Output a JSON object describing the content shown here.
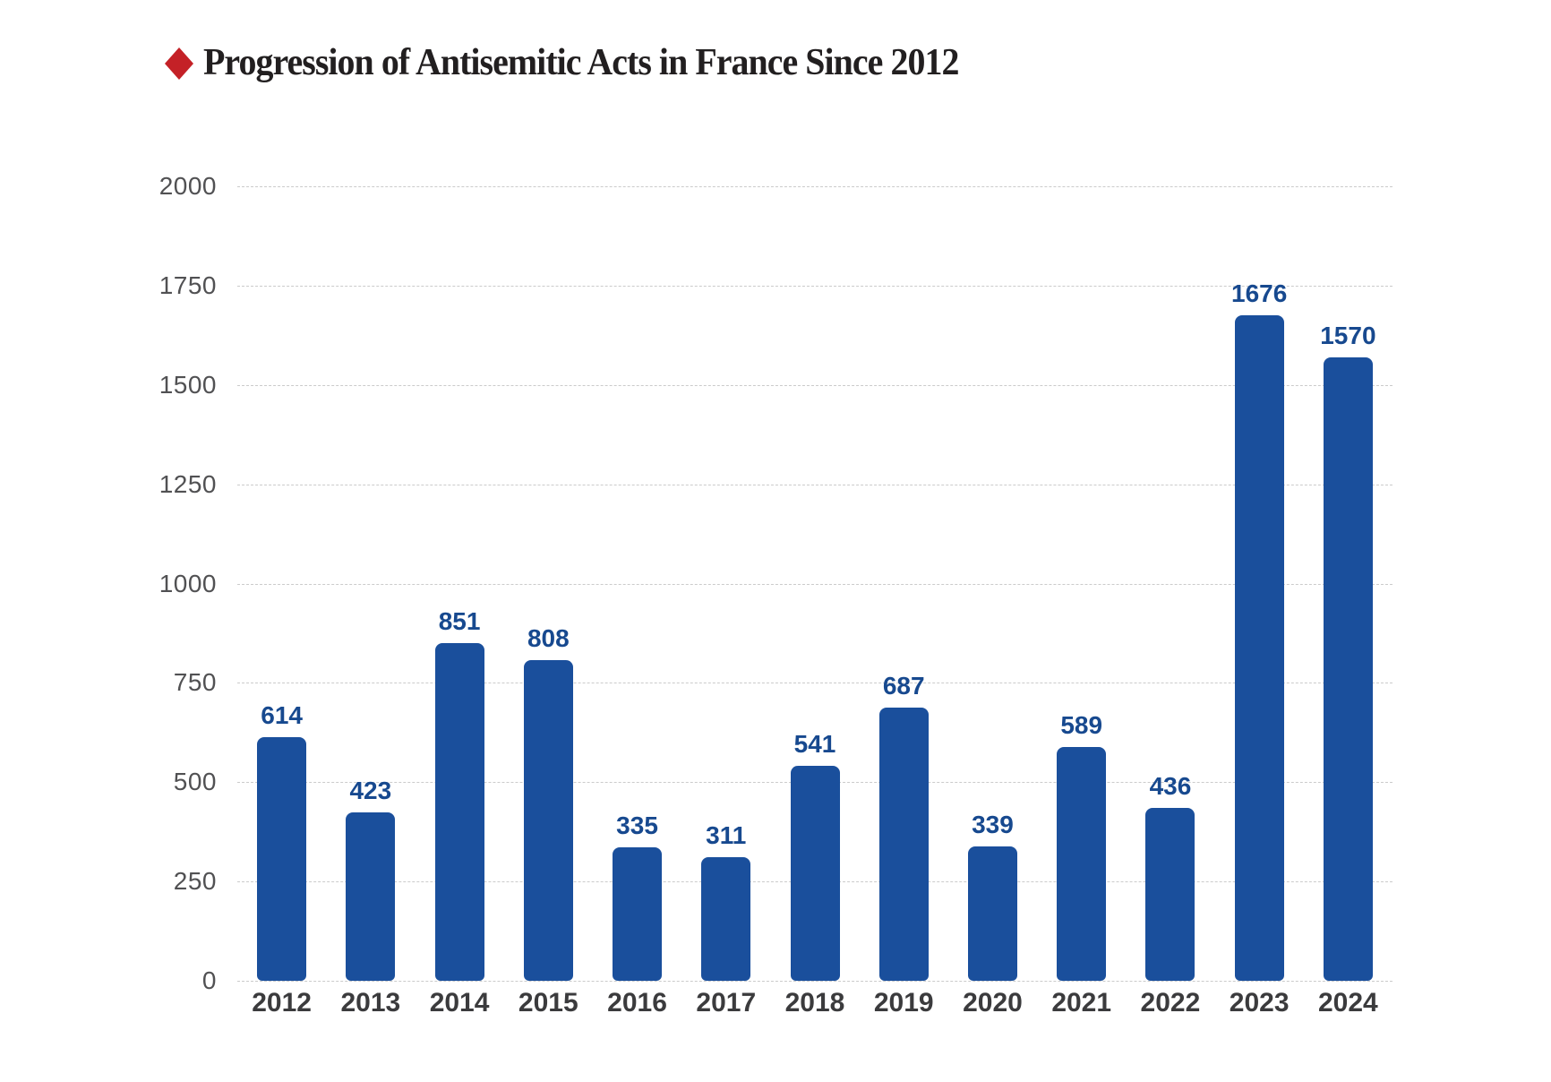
{
  "title": {
    "text": "Progression of Antisemitic Acts in France Since 2012"
  },
  "icons": {
    "bullet": "diamond"
  },
  "colors": {
    "background": "#ffffff",
    "bar": "#1a4f9c",
    "value_label": "#17498f",
    "diamond_bullet": "#c42127",
    "title_text": "#221f20",
    "grid_line": "#cbcbcb",
    "y_tick": "#515153",
    "x_tick": "#3b3b3d"
  },
  "chart_data": {
    "type": "bar",
    "title": "Progression of Antisemitic Acts in France Since 2012",
    "categories": [
      "2012",
      "2013",
      "2014",
      "2015",
      "2016",
      "2017",
      "2018",
      "2019",
      "2020",
      "2021",
      "2022",
      "2023",
      "2024"
    ],
    "values": [
      614,
      423,
      851,
      808,
      335,
      311,
      541,
      687,
      339,
      589,
      436,
      1676,
      1570
    ],
    "value_labels": [
      "614",
      "423",
      "851",
      "808",
      "335",
      "311",
      "541",
      "687",
      "339",
      "589",
      "436",
      "1676",
      "1570"
    ],
    "xlabel": "",
    "ylabel": "",
    "ylim": [
      0,
      2000
    ],
    "yticks": [
      0,
      250,
      500,
      750,
      1000,
      1250,
      1500,
      1750,
      2000
    ],
    "grid": "horizontal-dashed",
    "legend": "none",
    "bar_labels_position": "above-bars"
  }
}
